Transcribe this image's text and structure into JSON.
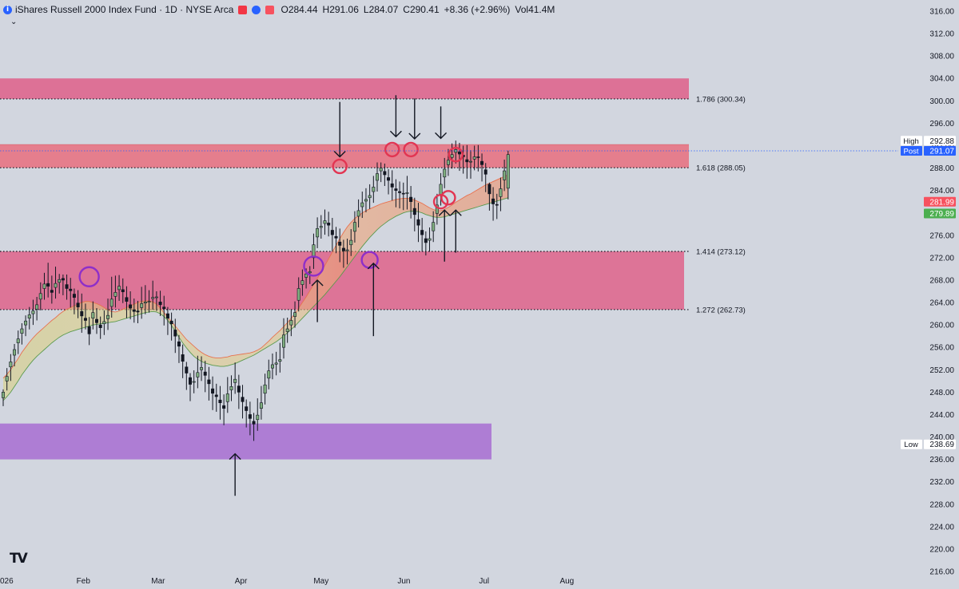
{
  "header": {
    "title": "iShares Russell 2000 Index Fund · 1D · NYSE Arca",
    "info_glyph": "i",
    "flag_colors": [
      "#f23645",
      "#2962ff",
      "#f7525f"
    ],
    "ohlc": [
      {
        "key": "O",
        "value": "284.44"
      },
      {
        "key": "H",
        "value": "291.06"
      },
      {
        "key": "L",
        "value": "284.07"
      },
      {
        "key": "C",
        "value": "290.41"
      },
      {
        "key": "",
        "value": "+8.36 (+2.96%)"
      },
      {
        "key": "Vol",
        "value": "41.4M"
      }
    ],
    "collapse_icon": "chevron-down-icon"
  },
  "logo": "TV",
  "chart_data": {
    "type": "candlestick",
    "ylim": [
      216,
      316
    ],
    "y_ticks": [
      "316.00",
      "312.00",
      "308.00",
      "304.00",
      "300.00",
      "296.00",
      "292.00",
      "288.00",
      "284.00",
      "280.00",
      "276.00",
      "272.00",
      "268.00",
      "264.00",
      "260.00",
      "256.00",
      "252.00",
      "248.00",
      "244.00",
      "240.00",
      "236.00",
      "232.00",
      "228.00",
      "224.00",
      "220.00",
      "216.00"
    ],
    "x_ticks": [
      {
        "label": "026",
        "date": "2026-01-02"
      },
      {
        "label": "Feb",
        "date": "2026-02-01"
      },
      {
        "label": "Mar",
        "date": "2026-03-01"
      },
      {
        "label": "Apr",
        "date": "2026-04-01"
      },
      {
        "label": "May",
        "date": "2026-05-01"
      },
      {
        "label": "Jun",
        "date": "2026-06-01"
      },
      {
        "label": "Jul",
        "date": "2026-07-01"
      },
      {
        "label": "Aug",
        "date": "2026-08-01"
      }
    ],
    "candles_close": [
      248.0,
      250.8,
      253.4,
      255.6,
      257.5,
      259.3,
      260.7,
      261.8,
      262.5,
      263.6,
      265.6,
      267.3,
      266.9,
      265.8,
      267.4,
      268.1,
      268.0,
      266.5,
      266.1,
      264.9,
      263.2,
      261.6,
      260.8,
      258.4,
      262.2,
      260.4,
      259.5,
      260.6,
      261.7,
      264.6,
      265.8,
      266.9,
      265.9,
      264.2,
      263.0,
      262.4,
      262.3,
      263.8,
      264.1,
      264.2,
      264.9,
      265.0,
      263.6,
      262.9,
      261.2,
      260.2,
      258.0,
      256.2,
      253.5,
      251.4,
      249.4,
      249.9,
      251.5,
      252.4,
      251.0,
      249.5,
      247.8,
      247.2,
      246.1,
      245.1,
      247.7,
      249.0,
      250.3,
      248.0,
      246.3,
      244.7,
      243.3,
      242.3,
      243.9,
      246.1,
      249.3,
      251.8,
      252.9,
      253.2,
      253.8,
      258.2,
      259.3,
      260.8,
      262.2,
      266.5,
      267.9,
      269.1,
      269.5,
      274.3,
      277.2,
      277.6,
      278.6,
      277.8,
      276.1,
      275.5,
      274.2,
      273.2,
      273.4,
      275.1,
      278.3,
      280.4,
      281.8,
      282.4,
      283.1,
      284.6,
      287.0,
      288.0,
      286.8,
      285.8,
      284.6,
      284.0,
      283.6,
      283.4,
      283.6,
      282.0,
      279.7,
      277.8,
      276.1,
      274.7,
      275.4,
      278.3,
      281.4,
      285.1,
      287.8,
      289.4,
      290.4,
      291.3,
      290.5,
      290.0,
      289.1,
      289.2,
      290.0,
      289.9,
      288.6,
      286.9,
      283.4,
      281.6,
      281.4,
      284.3,
      287.5,
      290.4
    ],
    "candles_open": [
      247.0,
      250.0,
      252.5,
      254.6,
      256.8,
      258.5,
      260.0,
      261.2,
      262.0,
      262.8,
      264.6,
      266.5,
      267.4,
      266.2,
      266.7,
      267.6,
      268.3,
      267.2,
      266.4,
      265.5,
      263.9,
      262.4,
      261.2,
      259.7,
      261.2,
      261.0,
      260.0,
      260.2,
      261.1,
      263.3,
      265.1,
      266.3,
      266.3,
      264.9,
      263.6,
      262.7,
      262.5,
      263.1,
      263.9,
      264.2,
      264.7,
      265.0,
      264.1,
      263.2,
      262.0,
      260.7,
      259.1,
      257.0,
      254.7,
      252.5,
      250.6,
      249.8,
      250.7,
      252.0,
      251.6,
      250.2,
      248.6,
      247.5,
      246.6,
      245.6,
      246.3,
      248.4,
      249.7,
      249.1,
      247.1,
      245.4,
      244.0,
      242.8,
      243.1,
      245.1,
      247.8,
      250.5,
      252.3,
      253.0,
      253.5,
      256.0,
      258.8,
      260.0,
      261.5,
      264.4,
      267.2,
      268.5,
      269.3,
      272.0,
      275.7,
      277.4,
      278.1,
      278.2,
      276.9,
      275.8,
      274.8,
      273.7,
      273.3,
      274.3,
      276.7,
      279.4,
      281.1,
      282.1,
      282.7,
      283.8,
      285.8,
      287.5,
      287.4,
      286.3,
      285.2,
      284.3,
      283.8,
      283.5,
      283.5,
      282.8,
      280.8,
      278.8,
      276.9,
      275.4,
      275.1,
      276.8,
      279.9,
      283.3,
      286.4,
      288.6,
      289.9,
      290.8,
      290.9,
      290.3,
      289.5,
      289.1,
      289.6,
      290.0,
      289.2,
      287.7,
      285.1,
      282.5,
      281.5,
      282.9,
      285.9,
      284.4
    ],
    "candles_high": [
      248.5,
      252.3,
      254.8,
      256.6,
      259.0,
      260.3,
      261.7,
      263.2,
      264.5,
      265.0,
      267.6,
      269.3,
      271.1,
      268.8,
      270.4,
      269.1,
      269.0,
      269.0,
      268.4,
      266.5,
      266.2,
      265.6,
      263.8,
      261.4,
      264.2,
      263.0,
      261.5,
      262.6,
      264.7,
      268.6,
      268.8,
      268.9,
      268.3,
      266.9,
      266.0,
      264.7,
      264.3,
      266.8,
      267.1,
      266.2,
      267.9,
      266.0,
      266.1,
      265.2,
      263.2,
      262.2,
      261.1,
      258.2,
      256.5,
      253.4,
      251.4,
      251.9,
      254.5,
      254.4,
      253.6,
      252.5,
      250.8,
      249.5,
      249.1,
      247.6,
      250.7,
      251.0,
      253.3,
      251.1,
      249.3,
      246.7,
      246.3,
      244.3,
      246.9,
      249.1,
      251.3,
      253.8,
      254.9,
      255.2,
      256.8,
      261.2,
      261.3,
      262.8,
      264.2,
      268.5,
      269.9,
      270.1,
      270.5,
      276.3,
      279.2,
      279.6,
      280.6,
      280.2,
      279.1,
      277.5,
      277.2,
      275.2,
      275.4,
      277.1,
      280.3,
      282.4,
      283.8,
      284.4,
      285.1,
      286.6,
      289.0,
      289.0,
      288.8,
      287.8,
      287.6,
      286.0,
      285.6,
      285.4,
      286.6,
      284.8,
      282.7,
      281.8,
      279.1,
      276.7,
      277.4,
      280.3,
      283.4,
      287.1,
      289.8,
      291.4,
      292.4,
      292.9,
      292.5,
      292.0,
      292.1,
      291.2,
      292.0,
      292.1,
      290.6,
      288.9,
      285.4,
      284.6,
      283.4,
      286.3,
      289.5,
      291.1
    ],
    "candles_low": [
      245.5,
      248.3,
      250.0,
      252.6,
      254.8,
      256.5,
      258.0,
      259.2,
      260.0,
      260.8,
      262.6,
      264.5,
      264.9,
      263.8,
      264.7,
      265.6,
      265.3,
      264.5,
      263.1,
      261.9,
      261.2,
      258.6,
      259.2,
      256.4,
      259.2,
      258.4,
      257.5,
      258.2,
      259.1,
      261.3,
      263.1,
      264.3,
      263.9,
      261.2,
      261.0,
      260.4,
      260.3,
      261.1,
      261.9,
      262.2,
      262.7,
      262.5,
      261.6,
      259.9,
      258.2,
      257.2,
      255.0,
      253.2,
      250.5,
      248.4,
      246.4,
      247.8,
      248.7,
      250.0,
      248.0,
      246.5,
      244.8,
      244.5,
      243.1,
      242.1,
      244.3,
      246.4,
      247.7,
      245.0,
      243.3,
      241.7,
      240.3,
      239.3,
      241.1,
      243.1,
      245.8,
      248.5,
      250.3,
      251.0,
      251.5,
      254.0,
      256.8,
      258.0,
      259.5,
      262.4,
      265.2,
      266.5,
      267.3,
      270.0,
      273.7,
      275.4,
      276.1,
      275.8,
      273.1,
      272.8,
      271.2,
      270.2,
      270.8,
      272.3,
      274.7,
      277.4,
      279.1,
      280.1,
      280.7,
      281.8,
      283.8,
      285.5,
      284.8,
      283.3,
      282.2,
      281.0,
      280.8,
      280.5,
      280.6,
      279.0,
      276.7,
      274.8,
      273.1,
      272.4,
      273.1,
      274.8,
      277.9,
      281.3,
      284.4,
      286.6,
      287.9,
      288.8,
      287.5,
      287.0,
      286.1,
      286.1,
      287.6,
      287.4,
      285.6,
      283.7,
      280.4,
      278.6,
      278.9,
      280.3,
      283.9,
      282.4
    ],
    "cloud_upper": [
      250.5,
      251.2,
      252.0,
      253.0,
      254.0,
      255.1,
      256.0,
      256.9,
      257.7,
      258.4,
      259.0,
      259.6,
      260.2,
      260.8,
      261.3,
      261.9,
      262.4,
      262.8,
      263.1,
      263.4,
      263.7,
      264.0,
      264.2,
      264.2,
      264.0,
      263.8,
      263.5,
      263.1,
      262.7,
      262.4,
      262.3,
      262.5,
      262.8,
      263.1,
      263.4,
      263.7,
      264.0,
      264.2,
      264.3,
      264.3,
      264.1,
      263.7,
      263.0,
      262.2,
      261.4,
      260.6,
      259.8,
      259.0,
      258.2,
      257.4,
      256.8,
      256.2,
      255.6,
      255.1,
      254.7,
      254.4,
      254.2,
      254.1,
      254.1,
      254.2,
      254.3,
      254.5,
      254.6,
      254.7,
      254.8,
      254.9,
      255.0,
      255.2,
      255.5,
      255.9,
      256.5,
      257.1,
      257.8,
      258.4,
      259.0,
      259.7,
      260.4,
      261.2,
      262.0,
      263.0,
      264.0,
      265.0,
      266.1,
      267.2,
      268.3,
      269.4,
      270.6,
      271.8,
      273.0,
      274.2,
      275.4,
      276.5,
      277.5,
      278.3,
      279.0,
      279.5,
      280.0,
      280.4,
      280.7,
      281.0,
      281.3,
      281.6,
      281.8,
      282.0,
      282.2,
      282.4,
      282.5,
      282.6,
      282.6,
      282.5,
      282.3,
      282.0,
      281.7,
      281.3,
      280.9,
      280.6,
      280.4,
      280.4,
      280.6,
      281.0,
      281.4,
      281.9,
      282.3,
      282.7,
      283.1,
      283.4,
      283.8,
      284.2,
      284.6,
      285.0,
      285.3,
      285.6,
      285.9,
      286.2,
      286.5,
      286.8
    ],
    "cloud_lower": [
      246.5,
      247.2,
      248.0,
      249.0,
      250.0,
      251.1,
      252.0,
      252.9,
      253.7,
      254.4,
      255.0,
      255.6,
      256.2,
      256.8,
      257.3,
      257.8,
      258.2,
      258.5,
      258.8,
      259.0,
      259.2,
      259.4,
      259.6,
      259.8,
      260.0,
      260.1,
      260.2,
      260.3,
      260.4,
      260.5,
      260.6,
      260.8,
      261.0,
      261.2,
      261.4,
      261.6,
      261.8,
      262.0,
      262.2,
      262.3,
      262.4,
      262.3,
      262.0,
      261.5,
      260.8,
      259.9,
      258.9,
      257.8,
      256.8,
      255.9,
      255.1,
      254.4,
      253.9,
      253.5,
      253.2,
      253.0,
      252.8,
      252.7,
      252.6,
      252.6,
      252.7,
      252.9,
      253.1,
      253.4,
      253.7,
      254.0,
      254.3,
      254.6,
      255.0,
      255.4,
      255.8,
      256.2,
      256.6,
      257.0,
      257.5,
      258.0,
      258.6,
      259.2,
      259.8,
      260.5,
      261.2,
      261.9,
      262.6,
      263.3,
      264.0,
      264.7,
      265.4,
      266.2,
      267.0,
      267.8,
      268.6,
      269.5,
      270.4,
      271.3,
      272.2,
      273.1,
      274.0,
      274.8,
      275.6,
      276.3,
      277.0,
      277.6,
      278.1,
      278.6,
      279.0,
      279.4,
      279.7,
      280.0,
      280.2,
      280.3,
      280.3,
      280.2,
      280.0,
      279.7,
      279.5,
      279.3,
      279.2,
      279.2,
      279.3,
      279.5,
      279.7,
      279.9,
      280.1,
      280.3,
      280.5,
      280.7,
      280.9,
      281.1,
      281.3,
      281.5,
      281.7,
      281.9,
      282.1,
      282.3,
      282.5,
      282.7
    ],
    "zones": [
      {
        "from": 300.34,
        "to": 304.0,
        "color": "#e04a7a"
      },
      {
        "from": 288.05,
        "to": 292.2,
        "color": "#ec5b6e"
      },
      {
        "from": 262.73,
        "to": 273.12,
        "color": "#e14e7c"
      },
      {
        "from": 236.0,
        "to": 242.4,
        "color": "#a05ad0"
      }
    ],
    "fib_levels": [
      {
        "label": "1.786 (300.34)",
        "price": 300.34
      },
      {
        "label": "1.618 (288.05)",
        "price": 288.05
      },
      {
        "label": "1.414 (273.12)",
        "price": 273.12
      },
      {
        "label": "1.272 (262.73)",
        "price": 262.73
      }
    ],
    "price_tags": [
      {
        "name": "High",
        "value": "292.88",
        "price": 292.88,
        "color": "#ffffff",
        "text_color": "#131722"
      },
      {
        "name": "Post",
        "value": "291.07",
        "price": 291.07,
        "color": "#2962ff",
        "text_color": "#ffffff"
      },
      {
        "name": "",
        "value": "281.99",
        "price": 281.99,
        "color": "#f7525f",
        "text_color": "#ffffff"
      },
      {
        "name": "",
        "value": "279.89",
        "price": 279.89,
        "color": "#4caf50",
        "text_color": "#ffffff"
      },
      {
        "name": "Low",
        "value": "238.69",
        "price": 238.69,
        "color": "#ffffff",
        "text_color": "#131722"
      }
    ],
    "circles": [
      {
        "candle": 23,
        "price": 268.6,
        "color": "#8e2fc9",
        "size": "large"
      },
      {
        "candle": 83,
        "price": 270.5,
        "color": "#8e2fc9",
        "size": "large"
      },
      {
        "candle": 98,
        "price": 271.6,
        "color": "#8e2fc9",
        "size": "medium"
      },
      {
        "candle": 90,
        "price": 288.3,
        "color": "#e23552",
        "size": "small"
      },
      {
        "candle": 104,
        "price": 291.3,
        "color": "#e23552",
        "size": "small"
      },
      {
        "candle": 109,
        "price": 291.3,
        "color": "#e23552",
        "size": "small"
      },
      {
        "candle": 117,
        "price": 282.0,
        "color": "#e23552",
        "size": "small"
      },
      {
        "candle": 119,
        "price": 282.7,
        "color": "#e23552",
        "size": "small"
      },
      {
        "candle": 121,
        "price": 290.4,
        "color": "#e23552",
        "size": "small"
      }
    ],
    "arrows": [
      {
        "candle": 90,
        "dir": "down",
        "from_price": 299.8,
        "to_price": 290.0
      },
      {
        "candle": 105,
        "dir": "down",
        "from_price": 301.0,
        "to_price": 293.6
      },
      {
        "candle": 110,
        "dir": "down",
        "from_price": 300.4,
        "to_price": 293.2
      },
      {
        "candle": 117,
        "dir": "down",
        "from_price": 299.0,
        "to_price": 293.3
      },
      {
        "candle": 118,
        "dir": "up",
        "from_price": 271.3,
        "to_price": 280.5
      },
      {
        "candle": 121,
        "dir": "up",
        "from_price": 272.9,
        "to_price": 280.5
      },
      {
        "candle": 84,
        "dir": "up",
        "from_price": 260.5,
        "to_price": 268.0
      },
      {
        "candle": 99,
        "dir": "up",
        "from_price": 258.0,
        "to_price": 271.0
      },
      {
        "candle": 62,
        "dir": "up",
        "from_price": 229.5,
        "to_price": 237.0
      }
    ]
  }
}
